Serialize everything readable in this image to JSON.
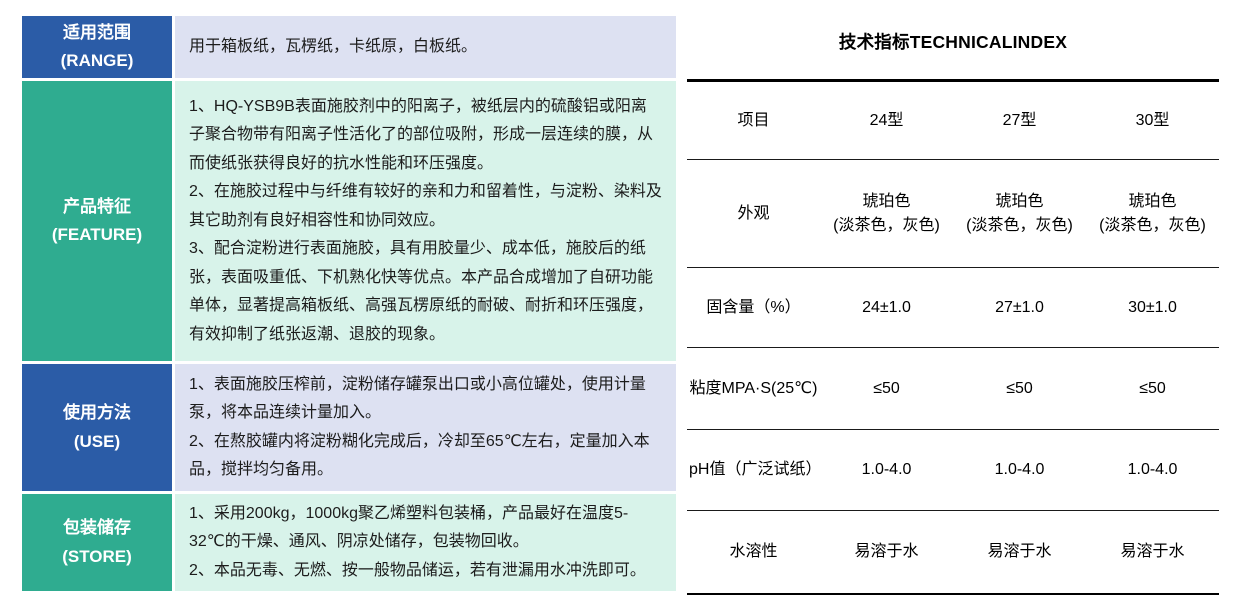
{
  "colors": {
    "header_blue": "#2b5ca7",
    "header_teal": "#2fac90",
    "content_lavender": "#dde1f2",
    "content_mint": "#d8f3ea",
    "rule_black": "#000000"
  },
  "spec_table": {
    "rows": [
      {
        "header_cn": "适用范围",
        "header_en": "(RANGE)",
        "paragraphs": [
          "用于箱板纸，瓦楞纸，卡纸原，白板纸。"
        ]
      },
      {
        "header_cn": "产品特征",
        "header_en": "(FEATURE)",
        "paragraphs": [
          "1、HQ-YSB9B表面施胶剂中的阳离子，被纸层内的硫酸铝或阳离子聚合物带有阳离子性活化了的部位吸附，形成一层连续的膜，从而使纸张获得良好的抗水性能和环压强度。",
          "2、在施胶过程中与纤维有较好的亲和力和留着性，与淀粉、染料及其它助剂有良好相容性和协同效应。",
          "3、配合淀粉进行表面施胶，具有用胶量少、成本低，施胶后的纸张，表面吸重低、下机熟化快等优点。本产品合成增加了自研功能单体，显著提高箱板纸、高强瓦楞原纸的耐破、耐折和环压强度，有效抑制了纸张返潮、退胶的现象。"
        ]
      },
      {
        "header_cn": "使用方法",
        "header_en": "(USE)",
        "paragraphs": [
          "1、表面施胶压榨前，淀粉储存罐泵出口或小高位罐处，使用计量泵，将本品连续计量加入。",
          "2、在熬胶罐内将淀粉糊化完成后，冷却至65℃左右，定量加入本品，搅拌均匀备用。"
        ]
      },
      {
        "header_cn": "包装储存",
        "header_en": "(STORE)",
        "paragraphs": [
          "1、采用200kg，1000kg聚乙烯塑料包装桶，产品最好在温度5-32℃的干燥、通风、阴凉处储存，包装物回收。",
          "2、本品无毒、无燃、按一般物品储运，若有泄漏用水冲洗即可。"
        ]
      }
    ]
  },
  "tech_table": {
    "title": "技术指标TECHNICALINDEX",
    "columns": [
      "项目",
      "24型",
      "27型",
      "30型"
    ],
    "rows": [
      {
        "label": "外观",
        "values": [
          "琥珀色\n(淡茶色，灰色)",
          "琥珀色\n(淡茶色，灰色)",
          "琥珀色\n(淡茶色，灰色)"
        ]
      },
      {
        "label": "固含量（%）",
        "values": [
          "24±1.0",
          "27±1.0",
          "30±1.0"
        ]
      },
      {
        "label": "粘度MPA·S(25℃)",
        "values": [
          "≤50",
          "≤50",
          "≤50"
        ]
      },
      {
        "label": "pH值（广泛试纸）",
        "values": [
          "1.0-4.0",
          "1.0-4.0",
          "1.0-4.0"
        ]
      },
      {
        "label": "水溶性",
        "values": [
          "易溶于水",
          "易溶于水",
          "易溶于水"
        ]
      }
    ]
  }
}
